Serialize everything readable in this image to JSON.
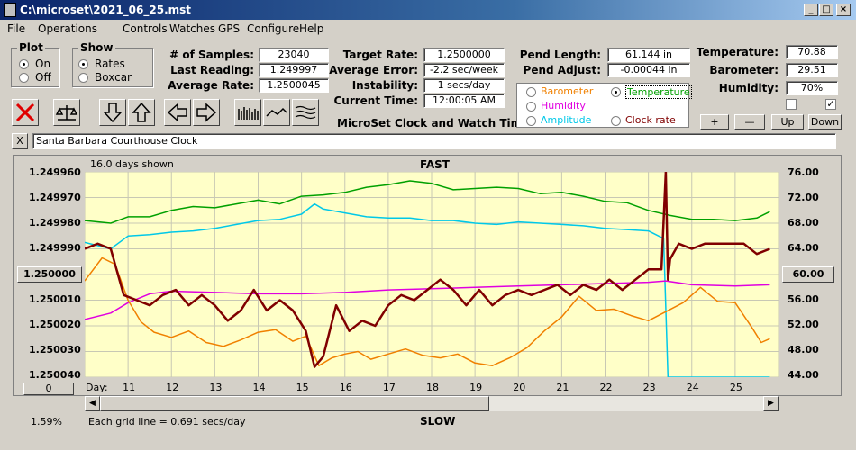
{
  "window": {
    "title": "C:\\microset\\2021_06_25.mst"
  },
  "menu": [
    "File",
    "Operations",
    "Controls",
    "Watches",
    "GPS",
    "Configure",
    "Help"
  ],
  "plot_group": {
    "label": "Plot",
    "options": [
      "On",
      "Off"
    ],
    "selected": "On"
  },
  "show_group": {
    "label": "Show",
    "options": [
      "Rates",
      "Boxcar"
    ],
    "selected": "Rates"
  },
  "stats": {
    "samples_label": "# of Samples:",
    "samples": "23040",
    "last_label": "Last Reading:",
    "last": "1.249997",
    "avg_label": "Average Rate:",
    "avg": "1.2500045",
    "target_label": "Target Rate:",
    "target": "1.2500000",
    "error_label": "Average Error:",
    "error": "-2.2 sec/week",
    "instability_label": "Instability:",
    "instability": "1 secs/day",
    "time_label": "Current Time:",
    "time": "12:00:05 AM",
    "pend_length_label": "Pend Length:",
    "pend_length": "61.144 in",
    "pend_adjust_label": "Pend Adjust:",
    "pend_adjust": "-0.00044 in",
    "temperature_label": "Temperature:",
    "temperature": "70.88",
    "barometer_label": "Barometer:",
    "barometer": "29.51",
    "humidity_label": "Humidity:",
    "humidity": "70%"
  },
  "app_label": "MicroSet Clock and Watch Timer",
  "sensor_options": [
    {
      "label": "Barometer",
      "color": "#f08000",
      "selected": false
    },
    {
      "label": "Temperature",
      "color": "#00a000",
      "selected": true
    },
    {
      "label": "Humidity",
      "color": "#e000e0",
      "selected": false
    },
    {
      "label": "Amplitude",
      "color": "#00c8e8",
      "selected": false
    },
    {
      "label": "Clock rate",
      "color": "#800000",
      "selected": false
    }
  ],
  "scale_buttons": {
    "plus": "+",
    "minus": "—",
    "up": "Up",
    "down": "Down"
  },
  "checkboxes": [
    {
      "checked": false
    },
    {
      "checked": true
    }
  ],
  "clock_name": "Santa Barbara Courthouse Clock",
  "close_x": "X",
  "plot": {
    "days_shown": "16.0 days shown",
    "top_label": "FAST",
    "bottom_label": "SLOW",
    "left_ticks": [
      "1.249960",
      "1.249970",
      "1.249980",
      "1.249990",
      "1.250000",
      "1.250010",
      "1.250020",
      "1.250030",
      "1.250040"
    ],
    "right_ticks": [
      "76.00",
      "72.00",
      "68.00",
      "64.00",
      "60.00",
      "56.00",
      "52.00",
      "48.00",
      "44.00"
    ],
    "center_left": "1.250000",
    "center_right": "60.00",
    "day_label": "Day:",
    "days": [
      "11",
      "12",
      "13",
      "14",
      "15",
      "16",
      "17",
      "18",
      "19",
      "20",
      "21",
      "22",
      "23",
      "24",
      "25"
    ],
    "zero_button": "0",
    "percent": "1.59%",
    "grid_note": "Each grid line = 0.691 secs/day"
  },
  "chart_data": {
    "type": "line",
    "xlabel": "Day:",
    "x_range": [
      10.0,
      26.0
    ],
    "y_left_range": [
      1.24996,
      1.25004
    ],
    "y_left_inverted": true,
    "y_right_range": [
      44.0,
      76.0
    ],
    "grid": true,
    "series": [
      {
        "name": "Temperature",
        "color": "#00a000",
        "axis": "right",
        "x": [
          10.0,
          10.6,
          11.0,
          11.5,
          12.0,
          12.5,
          13.0,
          13.5,
          14.0,
          14.5,
          15.0,
          15.5,
          16.0,
          16.5,
          17.0,
          17.5,
          18.0,
          18.5,
          19.0,
          19.5,
          20.0,
          20.5,
          21.0,
          21.5,
          22.0,
          22.5,
          23.0,
          23.5,
          24.0,
          24.5,
          25.0,
          25.5,
          25.8
        ],
        "y": [
          68.4,
          68.0,
          69.0,
          69.0,
          70.0,
          70.6,
          70.4,
          71.0,
          71.6,
          71.0,
          72.2,
          72.4,
          72.8,
          73.6,
          74.0,
          74.6,
          74.2,
          73.2,
          73.4,
          73.6,
          73.4,
          72.6,
          72.8,
          72.2,
          71.4,
          71.2,
          70.0,
          69.2,
          68.6,
          68.6,
          68.4,
          68.8,
          69.8
        ]
      },
      {
        "name": "Amplitude",
        "color": "#00c8e8",
        "axis": "right",
        "x": [
          10.0,
          10.6,
          11.0,
          11.5,
          12.0,
          12.5,
          13.0,
          13.5,
          14.0,
          14.5,
          15.0,
          15.3,
          15.5,
          16.0,
          16.5,
          17.0,
          17.5,
          18.0,
          18.5,
          19.0,
          19.5,
          20.0,
          20.5,
          21.0,
          21.5,
          22.0,
          22.5,
          23.0,
          23.35,
          23.45,
          24.0,
          25.0,
          25.8
        ],
        "y": [
          65.0,
          64.0,
          66.0,
          66.2,
          66.6,
          66.8,
          67.2,
          67.8,
          68.4,
          68.6,
          69.4,
          71.0,
          70.2,
          69.6,
          69.0,
          68.8,
          68.8,
          68.4,
          68.4,
          68.0,
          67.8,
          68.2,
          68.0,
          67.8,
          67.6,
          67.2,
          67.0,
          66.8,
          65.6,
          44.0,
          44.0,
          44.0,
          44.0
        ]
      },
      {
        "name": "Humidity",
        "color": "#e000e0",
        "axis": "right",
        "x": [
          10.0,
          10.6,
          11.0,
          11.5,
          12.0,
          13.0,
          14.0,
          15.0,
          16.0,
          17.0,
          18.0,
          19.0,
          20.0,
          21.0,
          22.0,
          23.0,
          23.4,
          24.0,
          25.0,
          25.8
        ],
        "y": [
          53.0,
          54.0,
          55.6,
          57.0,
          57.4,
          57.2,
          57.0,
          57.0,
          57.2,
          57.6,
          57.8,
          58.0,
          58.2,
          58.4,
          58.6,
          58.8,
          59.0,
          58.4,
          58.2,
          58.4
        ]
      },
      {
        "name": "Barometer",
        "color": "#f08000",
        "axis": "right",
        "x": [
          10.0,
          10.4,
          10.7,
          11.0,
          11.3,
          11.6,
          12.0,
          12.4,
          12.8,
          13.2,
          13.6,
          14.0,
          14.4,
          14.8,
          15.1,
          15.4,
          15.7,
          16.0,
          16.3,
          16.6,
          17.0,
          17.4,
          17.8,
          18.2,
          18.6,
          19.0,
          19.4,
          19.8,
          20.2,
          20.6,
          21.0,
          21.4,
          21.8,
          22.2,
          22.6,
          23.0,
          23.4,
          23.8,
          24.2,
          24.6,
          25.0,
          25.4,
          25.6,
          25.8
        ],
        "y": [
          59.0,
          62.6,
          61.6,
          56.0,
          52.6,
          51.0,
          50.2,
          51.2,
          49.4,
          48.8,
          49.8,
          51.0,
          51.4,
          49.6,
          50.4,
          45.8,
          47.0,
          47.6,
          48.0,
          46.8,
          47.6,
          48.4,
          47.4,
          47.0,
          47.6,
          46.2,
          45.8,
          47.0,
          48.6,
          51.2,
          53.4,
          56.6,
          54.4,
          54.6,
          53.6,
          52.8,
          54.2,
          55.6,
          58.0,
          55.8,
          55.6,
          51.6,
          49.4,
          50.0
        ]
      },
      {
        "name": "Clock rate",
        "color": "#800000",
        "axis": "left",
        "x": [
          10.0,
          10.3,
          10.6,
          10.9,
          11.2,
          11.5,
          11.8,
          12.1,
          12.4,
          12.7,
          13.0,
          13.3,
          13.6,
          13.9,
          14.2,
          14.5,
          14.8,
          15.1,
          15.3,
          15.5,
          15.8,
          16.1,
          16.4,
          16.7,
          17.0,
          17.3,
          17.6,
          17.9,
          18.2,
          18.5,
          18.8,
          19.1,
          19.4,
          19.7,
          20.0,
          20.3,
          20.6,
          20.9,
          21.2,
          21.5,
          21.8,
          22.1,
          22.4,
          22.7,
          23.0,
          23.3,
          23.4,
          23.45,
          23.5,
          23.7,
          24.0,
          24.3,
          24.6,
          24.9,
          25.2,
          25.5,
          25.8
        ],
        "y": [
          1.24999,
          1.249988,
          1.24999,
          1.250008,
          1.25001,
          1.250012,
          1.250008,
          1.250006,
          1.250012,
          1.250008,
          1.250012,
          1.250018,
          1.250014,
          1.250006,
          1.250014,
          1.25001,
          1.250014,
          1.250022,
          1.250036,
          1.250032,
          1.250012,
          1.250022,
          1.250018,
          1.25002,
          1.250012,
          1.250008,
          1.25001,
          1.250006,
          1.250002,
          1.250006,
          1.250012,
          1.250006,
          1.250012,
          1.250008,
          1.250006,
          1.250008,
          1.250006,
          1.250004,
          1.250008,
          1.250004,
          1.250006,
          1.250002,
          1.250006,
          1.250002,
          1.249998,
          1.249998,
          1.24996,
          1.250002,
          1.249994,
          1.249988,
          1.24999,
          1.249988,
          1.249988,
          1.249988,
          1.249988,
          1.249992,
          1.24999
        ]
      }
    ]
  }
}
